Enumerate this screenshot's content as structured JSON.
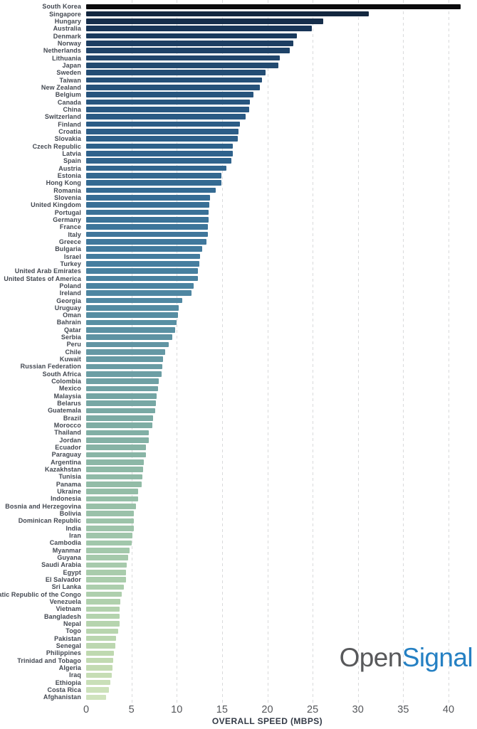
{
  "brand": {
    "open": "Open",
    "signal": "Signal",
    "open_color": "#58595b",
    "signal_color": "#2580c3"
  },
  "chart_data": {
    "type": "bar",
    "orientation": "horizontal",
    "title": "",
    "xlabel": "OVERALL SPEED (MBPS)",
    "ylabel": "",
    "unit": "Mbps",
    "xlim": [
      0,
      40
    ],
    "xticks": [
      0,
      5,
      10,
      15,
      20,
      25,
      30,
      35,
      40
    ],
    "grid": "vertical dashed",
    "legend": "none",
    "categories": [
      "South Korea",
      "Singapore",
      "Hungary",
      "Australia",
      "Denmark",
      "Norway",
      "Netherlands",
      "Lithuania",
      "Japan",
      "Sweden",
      "Taiwan",
      "New Zealand",
      "Belgium",
      "Canada",
      "China",
      "Switzerland",
      "Finland",
      "Croatia",
      "Slovakia",
      "Czech Republic",
      "Latvia",
      "Spain",
      "Austria",
      "Estonia",
      "Hong Kong",
      "Romania",
      "Slovenia",
      "United Kingdom",
      "Portugal",
      "Germany",
      "France",
      "Italy",
      "Greece",
      "Bulgaria",
      "Israel",
      "Turkey",
      "United Arab Emirates",
      "United States of America",
      "Poland",
      "Ireland",
      "Georgia",
      "Uruguay",
      "Oman",
      "Bahrain",
      "Qatar",
      "Serbia",
      "Peru",
      "Chile",
      "Kuwait",
      "Russian Federation",
      "South Africa",
      "Colombia",
      "Mexico",
      "Malaysia",
      "Belarus",
      "Guatemala",
      "Brazil",
      "Morocco",
      "Thailand",
      "Jordan",
      "Ecuador",
      "Paraguay",
      "Argentina",
      "Kazakhstan",
      "Tunisia",
      "Panama",
      "Ukraine",
      "Indonesia",
      "Bosnia and Herzegovina",
      "Bolivia",
      "Dominican Republic",
      "India",
      "Iran",
      "Cambodia",
      "Myanmar",
      "Guyana",
      "Saudi Arabia",
      "Egypt",
      "El Salvador",
      "Sri Lanka",
      "Democratic Republic of the Congo",
      "Venezuela",
      "Vietnam",
      "Bangladesh",
      "Nepal",
      "Togo",
      "Pakistan",
      "Senegal",
      "Philippines",
      "Trinidad and Tobago",
      "Algeria",
      "Iraq",
      "Ethiopia",
      "Costa Rica",
      "Afghanistan"
    ],
    "values": [
      41.3,
      31.2,
      26.2,
      24.9,
      23.3,
      22.9,
      22.5,
      21.4,
      21.2,
      19.8,
      19.4,
      19.2,
      18.5,
      18.1,
      18.0,
      17.6,
      17.0,
      16.8,
      16.7,
      16.2,
      16.2,
      16.0,
      15.5,
      14.9,
      14.9,
      14.3,
      13.7,
      13.6,
      13.5,
      13.5,
      13.4,
      13.4,
      13.3,
      12.8,
      12.6,
      12.5,
      12.3,
      12.3,
      11.9,
      11.6,
      10.6,
      10.2,
      10.1,
      10.0,
      9.8,
      9.5,
      9.1,
      8.7,
      8.5,
      8.4,
      8.3,
      8.0,
      7.9,
      7.8,
      7.7,
      7.6,
      7.4,
      7.3,
      6.9,
      6.9,
      6.6,
      6.6,
      6.4,
      6.3,
      6.2,
      6.1,
      5.7,
      5.7,
      5.5,
      5.3,
      5.3,
      5.3,
      5.1,
      5.0,
      4.8,
      4.6,
      4.5,
      4.4,
      4.4,
      4.2,
      3.9,
      3.8,
      3.7,
      3.7,
      3.7,
      3.5,
      3.3,
      3.2,
      3.1,
      3.0,
      2.9,
      2.8,
      2.7,
      2.5,
      2.2
    ],
    "bar_color_gradient_stops": [
      [
        0,
        "#0b0b0d"
      ],
      [
        1,
        "#13273f"
      ],
      [
        3,
        "#183557"
      ],
      [
        6,
        "#1f4368"
      ],
      [
        10,
        "#255078"
      ],
      [
        15,
        "#2a5a84"
      ],
      [
        21,
        "#30648d"
      ],
      [
        27,
        "#386f96"
      ],
      [
        33,
        "#427a9d"
      ],
      [
        38,
        "#4b84a1"
      ],
      [
        44,
        "#5b91a3"
      ],
      [
        50,
        "#6c9ea4"
      ],
      [
        56,
        "#7caba4"
      ],
      [
        62,
        "#8cb7a6"
      ],
      [
        68,
        "#98c0a8"
      ],
      [
        74,
        "#a3c8ab"
      ],
      [
        80,
        "#aecfad"
      ],
      [
        85,
        "#b8d5ae"
      ],
      [
        90,
        "#c3dbb2"
      ],
      [
        94,
        "#cfe3bd"
      ]
    ],
    "gridline_color": "#d9dadb"
  }
}
